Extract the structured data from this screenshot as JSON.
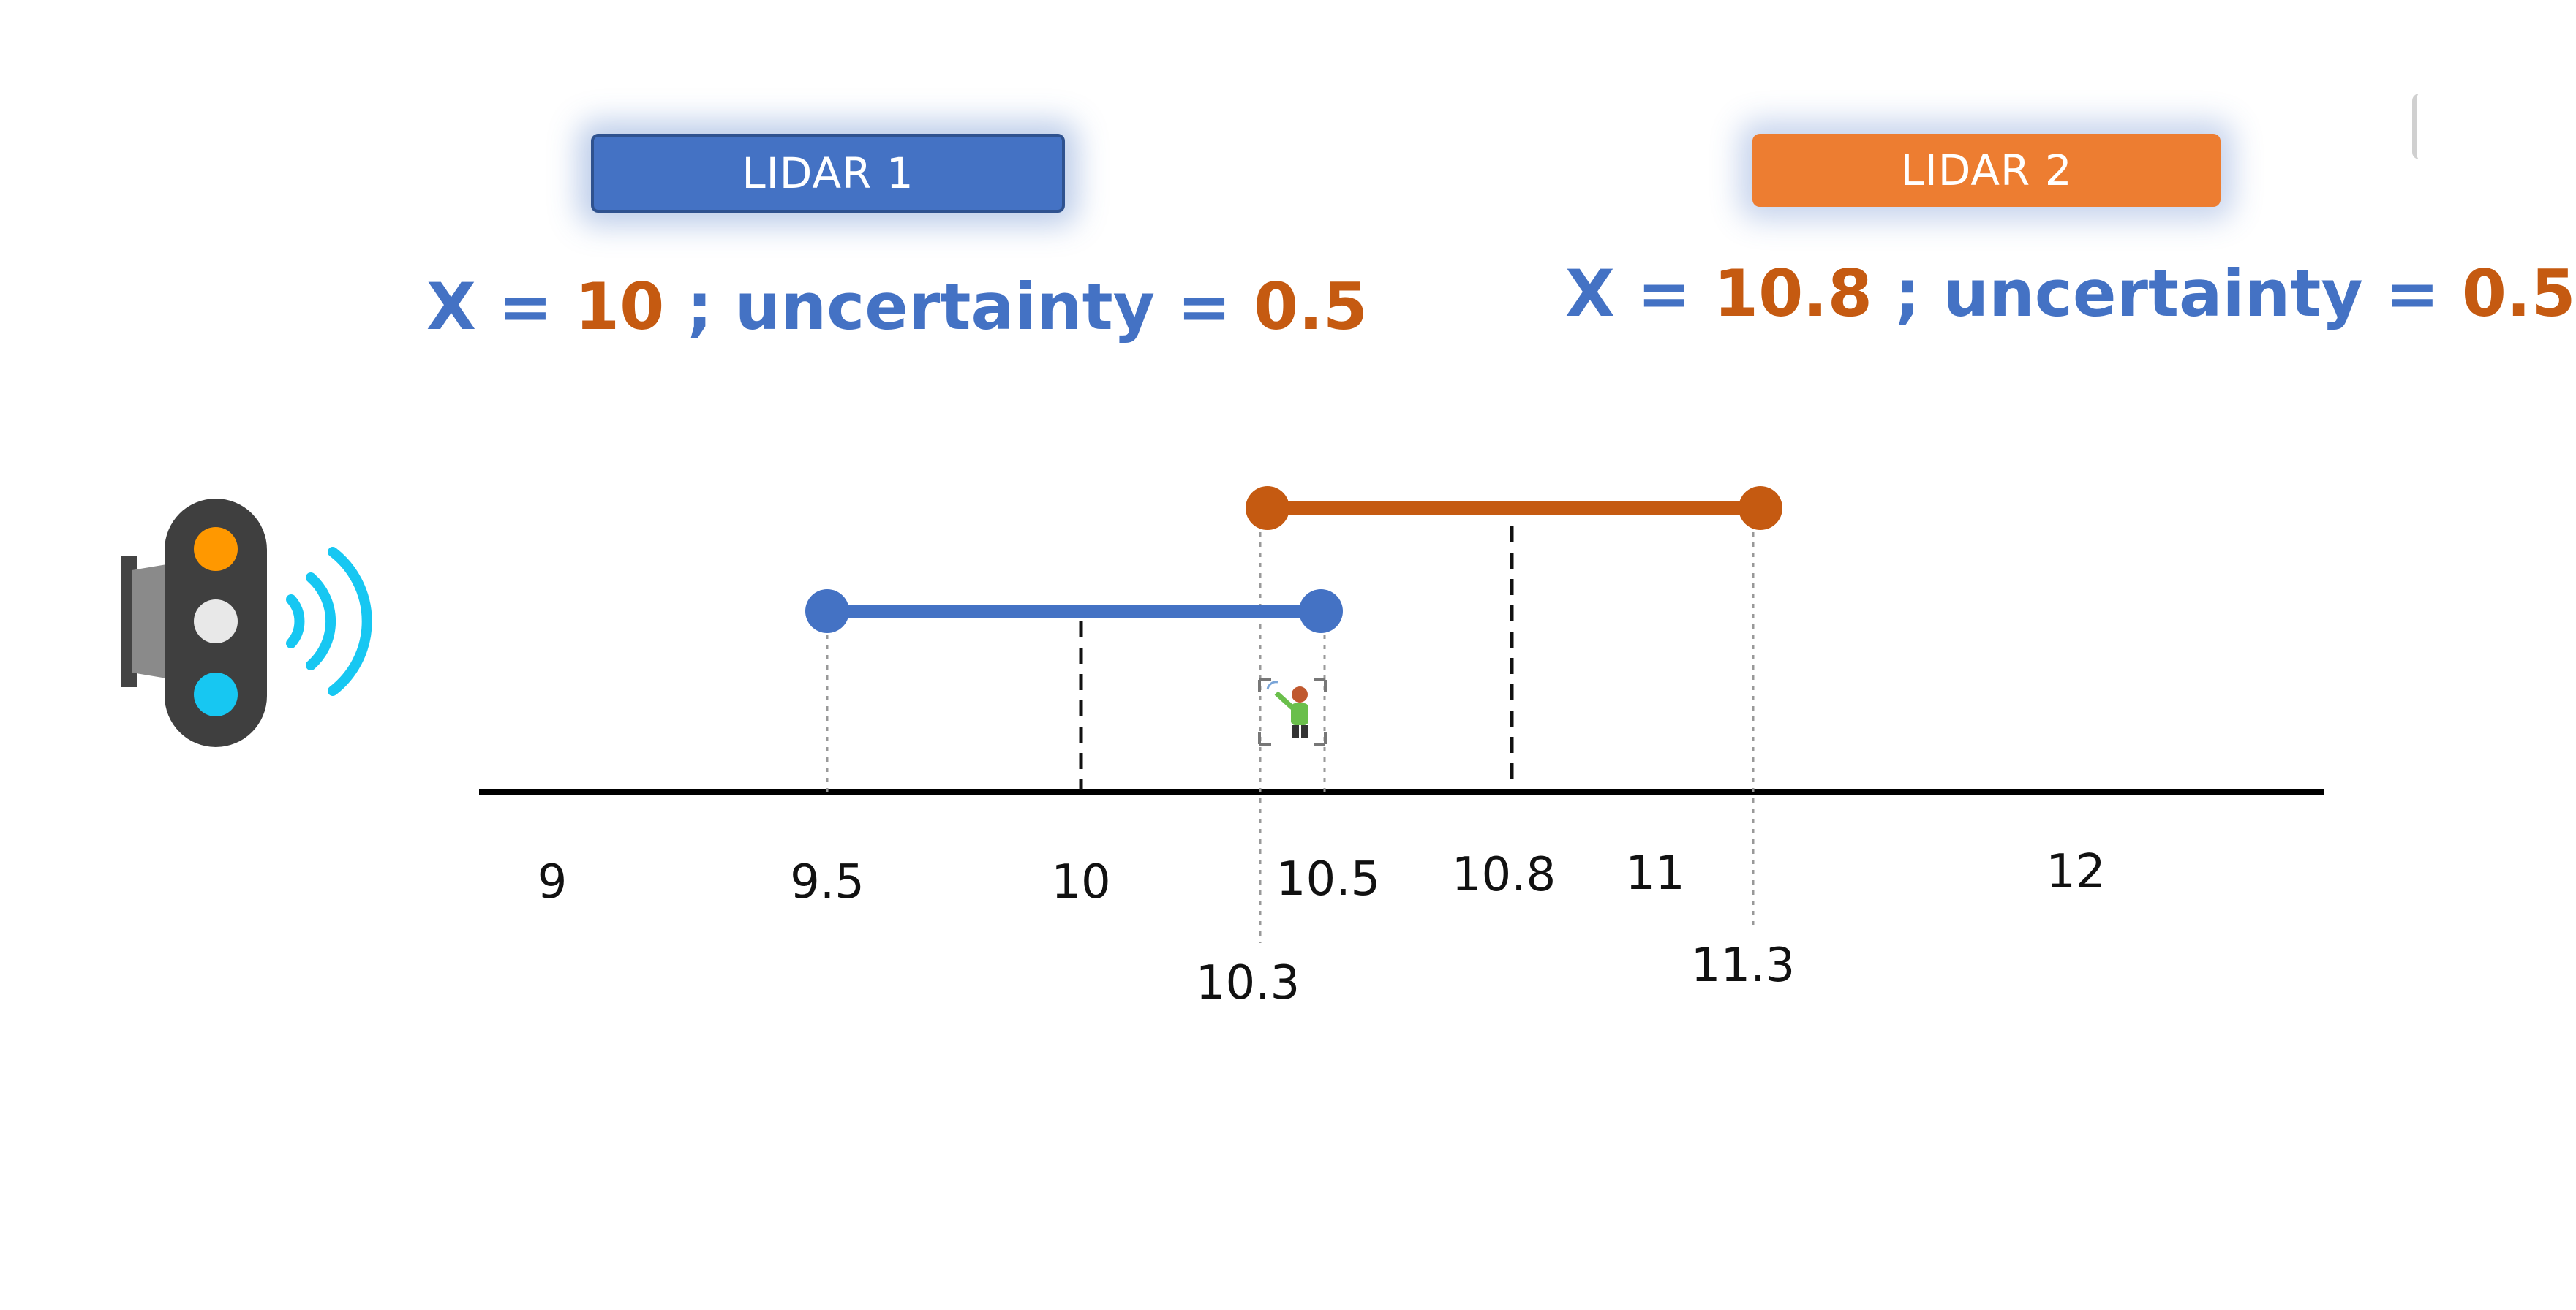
{
  "lidar1": {
    "badge_label": "LIDAR 1",
    "formula": {
      "x_label": "X = ",
      "x_value": "10",
      "sep": " ; uncertainty = ",
      "uncertainty": "0.5"
    },
    "color": "#4472C4",
    "interval": {
      "low": 9.5,
      "high": 10.5,
      "center": 10
    }
  },
  "lidar2": {
    "badge_label": "LIDAR 2",
    "formula": {
      "x_label": "X = ",
      "x_value": "10.8",
      "sep": " ; uncertainty = ",
      "uncertainty": "0.5"
    },
    "color": "#ED7D31",
    "interval": {
      "low": 10.3,
      "high": 11.3,
      "center": 10.8
    }
  },
  "axis": {
    "ticks_main": [
      "9",
      "9.5",
      "10",
      "10.5",
      "10.8",
      "11",
      "12"
    ],
    "ticks_lower": [
      "10.3",
      "11.3"
    ]
  },
  "icons": {
    "sensor": "traffic-light-sensor-icon",
    "person": "person-waving-icon"
  },
  "colors": {
    "blue": "#4472C4",
    "orange": "#C55A11",
    "axis": "#000000"
  }
}
